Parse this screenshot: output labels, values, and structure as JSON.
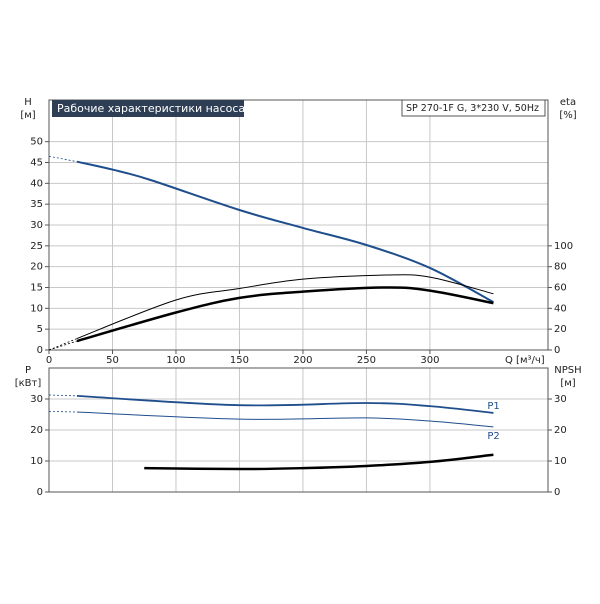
{
  "chart_data": [
    {
      "type": "line",
      "title": "Рабочие характеристики насоса",
      "subtitle": "SP 270-1F G, 3*230 V, 50Hz",
      "ylabel": "H",
      "yunit": "[м]",
      "y2label": "eta",
      "y2unit": "[%]",
      "xlabel": "Q [м³/ч]",
      "xlim": [
        0,
        393
      ],
      "xticks": [
        0,
        50,
        100,
        150,
        200,
        250,
        300
      ],
      "ylim": [
        0,
        60
      ],
      "yticks": [
        0,
        5,
        10,
        15,
        20,
        25,
        30,
        35,
        40,
        45,
        50
      ],
      "y2lim": [
        0,
        240
      ],
      "y2ticks": [
        0,
        20,
        40,
        60,
        80,
        100
      ],
      "grid": true,
      "series": [
        {
          "color": "#1f4e8c",
          "width": 2,
          "dashed_start": true,
          "axis": "y",
          "x": [
            0,
            22,
            50,
            80,
            150,
            200,
            250,
            300,
            350
          ],
          "values": [
            46.5,
            45.2,
            43.3,
            40.8,
            33.6,
            29.3,
            25.2,
            19.7,
            11.5
          ]
        },
        {
          "color": "#000000",
          "width": 1,
          "dashed_start": true,
          "axis": "y2",
          "x": [
            0,
            22,
            100,
            150,
            200,
            265,
            300,
            350
          ],
          "values": [
            0,
            11,
            48,
            59,
            68,
            72,
            70,
            54
          ]
        },
        {
          "color": "#000000",
          "width": 2.5,
          "dashed_start": true,
          "axis": "y2",
          "x": [
            0,
            22,
            100,
            150,
            200,
            265,
            300,
            350
          ],
          "values": [
            0,
            8.6,
            36,
            50,
            56,
            60,
            57,
            45
          ]
        }
      ]
    },
    {
      "type": "line",
      "ylabel": "P",
      "yunit": "[кВт]",
      "y2label": "NPSH",
      "y2unit": "[м]",
      "xlim": [
        0,
        393
      ],
      "xticks": [
        0,
        50,
        100,
        150,
        200,
        250,
        300
      ],
      "xtick_labels": false,
      "ylim": [
        0,
        40
      ],
      "yticks": [
        0,
        10,
        20,
        30
      ],
      "y2lim": [
        0,
        40
      ],
      "y2ticks": [
        0,
        10,
        20,
        30
      ],
      "grid": true,
      "series": [
        {
          "name": "P1",
          "color": "#1f4e8c",
          "width": 1.8,
          "dashed_start": true,
          "axis": "y",
          "x": [
            0,
            22,
            150,
            250,
            300,
            350
          ],
          "values": [
            31.3,
            31,
            28,
            28.7,
            27.7,
            25.5
          ]
        },
        {
          "name": "P2",
          "color": "#1f4e8c",
          "width": 1,
          "dashed_start": true,
          "axis": "y",
          "x": [
            0,
            22,
            150,
            250,
            300,
            350
          ],
          "values": [
            26,
            25.8,
            23.5,
            23.9,
            22.9,
            21
          ]
        },
        {
          "color": "#000000",
          "width": 2.5,
          "dashed_start": false,
          "axis": "y2",
          "x": [
            75,
            150,
            200,
            250,
            300,
            350
          ],
          "values": [
            7.7,
            7.4,
            7.7,
            8.4,
            9.7,
            12
          ]
        }
      ]
    }
  ]
}
